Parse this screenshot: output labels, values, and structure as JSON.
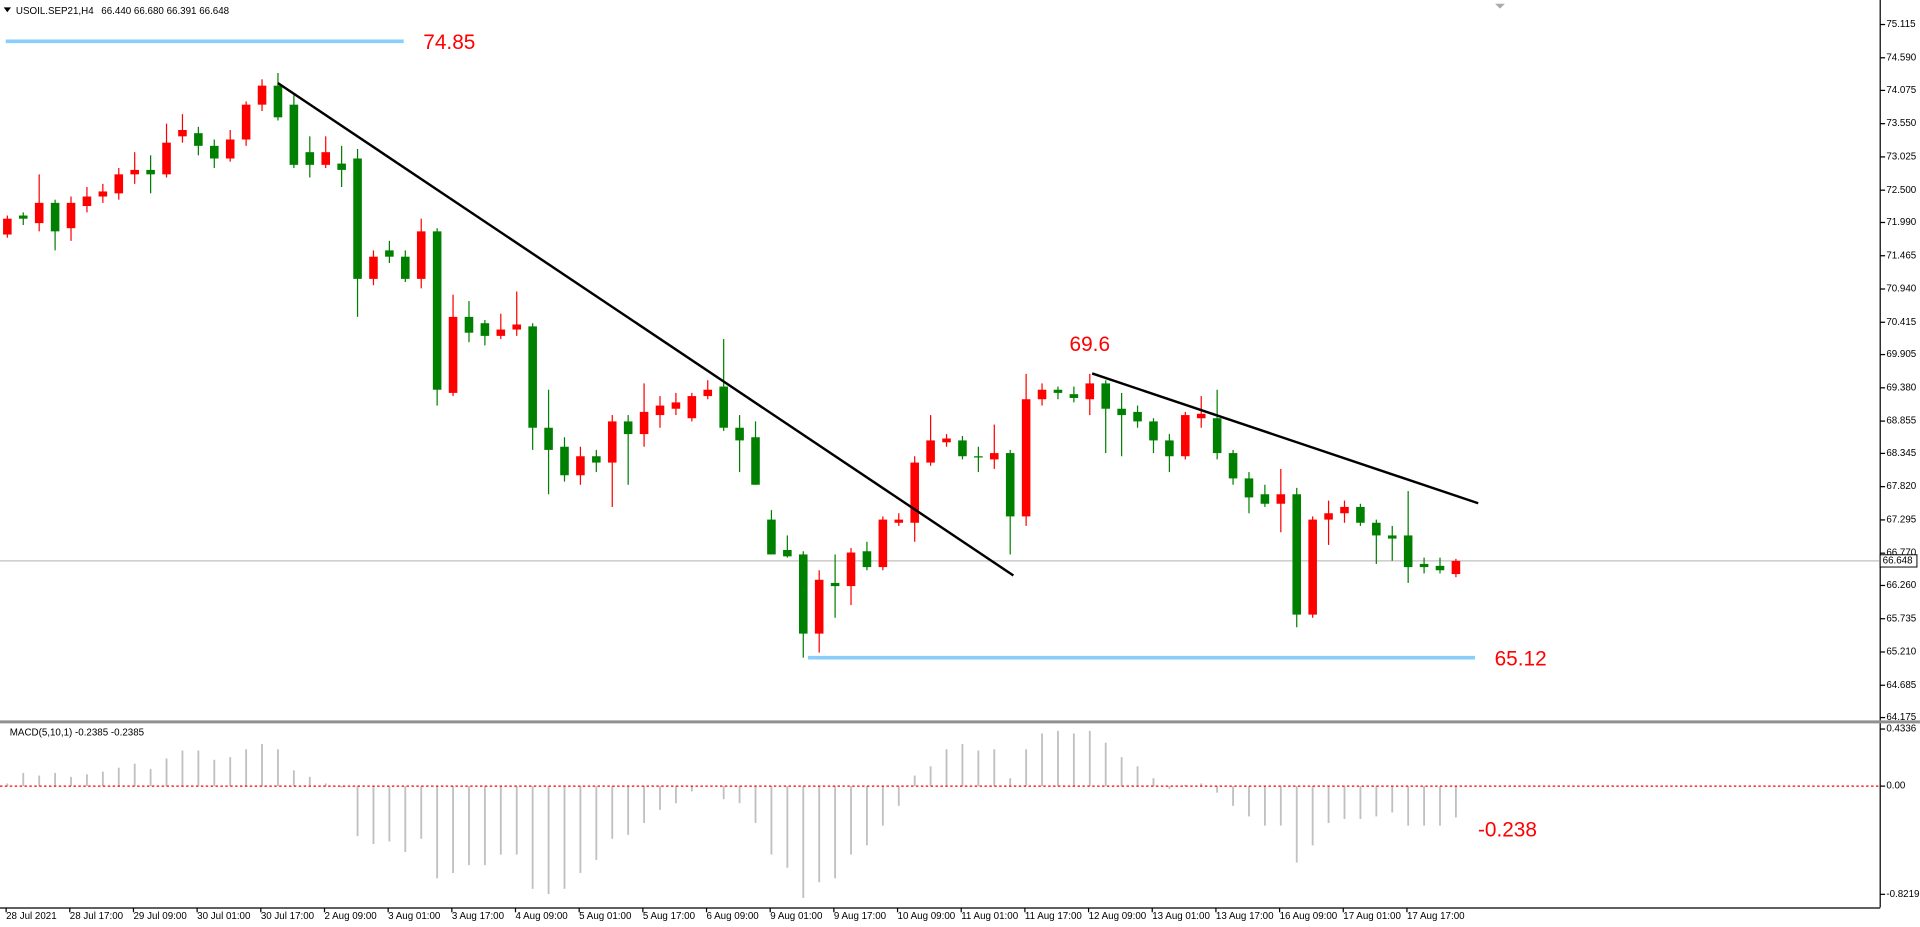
{
  "chart_data": {
    "type": "candlestick",
    "symbol": "USOIL.SEP21,H4",
    "last_price_labels": [
      "66.440",
      "66.680",
      "66.391",
      "66.648"
    ],
    "up_color": "#ff0000",
    "down_color": "#008000",
    "categories": [
      "28 Jul 2021",
      null,
      null,
      null,
      "28 Jul 17:00",
      null,
      null,
      null,
      "29 Jul 09:00",
      null,
      null,
      null,
      "30 Jul 01:00",
      null,
      null,
      null,
      "30 Jul 17:00",
      null,
      null,
      null,
      "2 Aug 09:00",
      null,
      null,
      null,
      "3 Aug 01:00",
      null,
      null,
      null,
      "3 Aug 17:00",
      null,
      null,
      null,
      "4 Aug 09:00",
      null,
      null,
      null,
      "5 Aug 01:00",
      null,
      null,
      null,
      "5 Aug 17:00",
      null,
      null,
      null,
      "6 Aug 09:00",
      null,
      null,
      null,
      "9 Aug 01:00",
      null,
      null,
      null,
      "9 Aug 17:00",
      null,
      null,
      null,
      "10 Aug 09:00",
      null,
      null,
      null,
      "11 Aug 01:00",
      null,
      null,
      null,
      "11 Aug 17:00",
      null,
      null,
      null,
      "12 Aug 09:00",
      null,
      null,
      null,
      "13 Aug 01:00",
      null,
      null,
      null,
      "13 Aug 17:00",
      null,
      null,
      null,
      "16 Aug 09:00",
      null,
      null,
      null,
      "17 Aug 01:00",
      null,
      null,
      null,
      "17 Aug 17:00",
      null,
      null,
      null
    ],
    "open": [
      71.8,
      72.1,
      71.98,
      72.3,
      71.9,
      72.25,
      72.4,
      72.45,
      72.75,
      72.82,
      72.75,
      73.35,
      73.4,
      73.2,
      73.0,
      73.3,
      73.85,
      74.15,
      73.85,
      73.1,
      72.9,
      72.92,
      73.0,
      71.1,
      71.55,
      71.45,
      71.1,
      71.85,
      69.3,
      70.5,
      70.4,
      70.2,
      70.3,
      70.35,
      68.75,
      68.45,
      68.0,
      68.3,
      68.2,
      68.85,
      68.65,
      68.95,
      69.05,
      68.9,
      69.25,
      69.4,
      68.75,
      68.6,
      67.3,
      66.82,
      66.75,
      65.5,
      66.3,
      66.25,
      66.8,
      66.55,
      67.25,
      67.25,
      68.2,
      68.52,
      68.55,
      68.3,
      68.25,
      68.35,
      67.35,
      69.2,
      69.35,
      69.28,
      69.2,
      69.45,
      69.05,
      69.0,
      68.85,
      68.55,
      68.3,
      68.9,
      68.9,
      68.35,
      67.95,
      67.7,
      67.55,
      67.7,
      65.8,
      67.3,
      67.4,
      67.5,
      67.25,
      67.05,
      67.05,
      66.6,
      66.57,
      66.44
    ],
    "high": [
      72.1,
      72.15,
      72.75,
      72.35,
      72.4,
      72.55,
      72.6,
      72.85,
      73.1,
      73.05,
      73.55,
      73.7,
      73.5,
      73.3,
      73.45,
      73.9,
      74.25,
      74.35,
      74.0,
      73.35,
      73.35,
      73.2,
      73.15,
      71.55,
      71.7,
      71.55,
      72.05,
      71.9,
      70.85,
      70.75,
      70.45,
      70.55,
      70.9,
      70.4,
      69.35,
      68.6,
      68.45,
      68.4,
      68.95,
      68.95,
      69.45,
      69.25,
      69.3,
      69.3,
      69.5,
      70.15,
      68.95,
      68.85,
      67.45,
      67.05,
      66.8,
      66.5,
      66.75,
      66.85,
      66.95,
      67.35,
      67.4,
      68.3,
      68.95,
      68.65,
      68.62,
      68.45,
      68.8,
      68.4,
      69.6,
      69.45,
      69.4,
      69.4,
      69.6,
      69.5,
      69.3,
      69.1,
      68.9,
      68.65,
      69.0,
      69.25,
      69.35,
      68.4,
      68.05,
      67.85,
      68.1,
      67.8,
      67.35,
      67.6,
      67.6,
      67.55,
      67.3,
      67.2,
      67.75,
      66.7,
      66.7,
      66.68
    ],
    "low": [
      71.75,
      71.95,
      71.85,
      71.55,
      71.7,
      72.15,
      72.3,
      72.35,
      72.6,
      72.45,
      72.7,
      73.25,
      73.05,
      72.85,
      72.95,
      73.2,
      73.75,
      73.6,
      72.85,
      72.7,
      72.85,
      72.55,
      70.5,
      71.0,
      71.35,
      71.05,
      70.95,
      69.1,
      69.25,
      70.1,
      70.05,
      70.15,
      70.2,
      68.4,
      67.7,
      67.9,
      67.85,
      68.05,
      67.5,
      67.85,
      68.45,
      68.75,
      68.95,
      68.85,
      69.2,
      68.7,
      68.05,
      67.85,
      66.75,
      66.7,
      65.12,
      65.2,
      65.75,
      65.95,
      66.5,
      66.5,
      67.2,
      66.95,
      68.15,
      68.45,
      68.25,
      68.05,
      68.1,
      66.75,
      67.2,
      69.1,
      69.2,
      69.15,
      68.95,
      68.35,
      68.3,
      68.75,
      68.35,
      68.05,
      68.25,
      68.75,
      68.25,
      67.85,
      67.4,
      67.5,
      67.1,
      65.6,
      65.75,
      66.9,
      67.25,
      67.2,
      66.6,
      66.65,
      66.3,
      66.45,
      66.45,
      66.391
    ],
    "close": [
      72.05,
      72.05,
      72.3,
      71.85,
      72.3,
      72.4,
      72.48,
      72.75,
      72.82,
      72.75,
      73.25,
      73.45,
      73.2,
      73.0,
      73.3,
      73.85,
      74.15,
      73.65,
      72.9,
      72.9,
      73.1,
      72.82,
      71.1,
      71.45,
      71.45,
      71.1,
      71.85,
      69.35,
      70.5,
      70.25,
      70.2,
      70.3,
      70.38,
      68.75,
      68.4,
      68.0,
      68.3,
      68.2,
      68.85,
      68.65,
      69.0,
      69.1,
      69.15,
      69.25,
      69.35,
      68.75,
      68.55,
      67.85,
      66.75,
      66.72,
      65.5,
      66.35,
      66.25,
      66.78,
      66.55,
      67.3,
      67.3,
      68.2,
      68.55,
      68.58,
      68.3,
      68.28,
      68.35,
      67.35,
      69.2,
      69.35,
      69.3,
      69.22,
      69.45,
      69.05,
      68.95,
      68.85,
      68.55,
      68.3,
      68.95,
      68.97,
      68.35,
      67.95,
      67.65,
      67.55,
      67.7,
      65.8,
      67.3,
      67.4,
      67.5,
      67.25,
      67.05,
      67.0,
      66.55,
      66.55,
      66.5,
      66.648
    ],
    "ylim": [
      64.136,
      75.463
    ],
    "yticks": [
      75.115,
      {
        "value": 74.59,
        "label": "74.590"
      },
      74.075,
      {
        "value": 73.55,
        "label": "73.550"
      },
      73.025,
      {
        "value": 72.5,
        "label": "72.500"
      },
      {
        "value": 71.99,
        "label": "71.990"
      },
      71.465,
      {
        "value": 70.94,
        "label": "70.940"
      },
      70.415,
      69.905,
      {
        "value": 69.38,
        "label": "69.380"
      },
      68.855,
      68.345,
      {
        "value": 67.82,
        "label": "67.820"
      },
      67.295,
      {
        "value": 66.77,
        "label": "66.770"
      },
      {
        "value": 66.26,
        "label": "66.260"
      },
      65.735,
      {
        "value": 65.21,
        "label": "65.210"
      },
      64.685,
      64.175
    ],
    "level_color": "#87cefa",
    "levels": [
      {
        "value": 74.85,
        "from": -0.1,
        "to": 24.9
      },
      {
        "value": 65.12,
        "from": 50.3,
        "to": 92.2
      }
    ],
    "trendlines": [
      {
        "points": [
          [
            17,
            74.19
          ],
          [
            63.2,
            66.418
          ]
        ]
      },
      {
        "points": [
          [
            68.15,
            69.607
          ],
          [
            92.4,
            67.558
          ]
        ]
      }
    ],
    "peak_label": {
      "value": 69.6,
      "index": 68
    },
    "macd": {
      "title": "MACD(5,10,1)",
      "readout": [
        -0.2385,
        -0.2385
      ],
      "annotation": -0.238,
      "color": "#c0c0c0",
      "values": [
        0.02,
        0.1,
        0.08,
        0.1,
        0.07,
        0.09,
        0.11,
        0.14,
        0.17,
        0.13,
        0.21,
        0.27,
        0.27,
        0.2,
        0.22,
        0.28,
        0.32,
        0.28,
        0.12,
        0.07,
        0.02,
        -0.01,
        -0.38,
        -0.44,
        -0.42,
        -0.5,
        -0.4,
        -0.7,
        -0.66,
        -0.6,
        -0.6,
        -0.52,
        -0.52,
        -0.78,
        -0.82,
        -0.78,
        -0.66,
        -0.56,
        -0.4,
        -0.37,
        -0.28,
        -0.18,
        -0.13,
        -0.04,
        0.0,
        -0.1,
        -0.13,
        -0.28,
        -0.52,
        -0.62,
        -0.85,
        -0.73,
        -0.7,
        -0.52,
        -0.45,
        -0.3,
        -0.15,
        0.08,
        0.15,
        0.28,
        0.32,
        0.27,
        0.28,
        0.06,
        0.28,
        0.4,
        0.42,
        0.4,
        0.42,
        0.33,
        0.22,
        0.15,
        0.06,
        -0.02,
        0.01,
        0.02,
        -0.05,
        -0.15,
        -0.23,
        -0.3,
        -0.3,
        -0.58,
        -0.45,
        -0.28,
        -0.25,
        -0.25,
        -0.23,
        -0.2,
        -0.3,
        -0.3,
        -0.3,
        -0.2385
      ],
      "ylim": [
        -0.921,
        0.474
      ],
      "yticks": [
        0.4336,
        {
          "value": 0,
          "label": "0.00"
        },
        -0.8219
      ]
    }
  }
}
